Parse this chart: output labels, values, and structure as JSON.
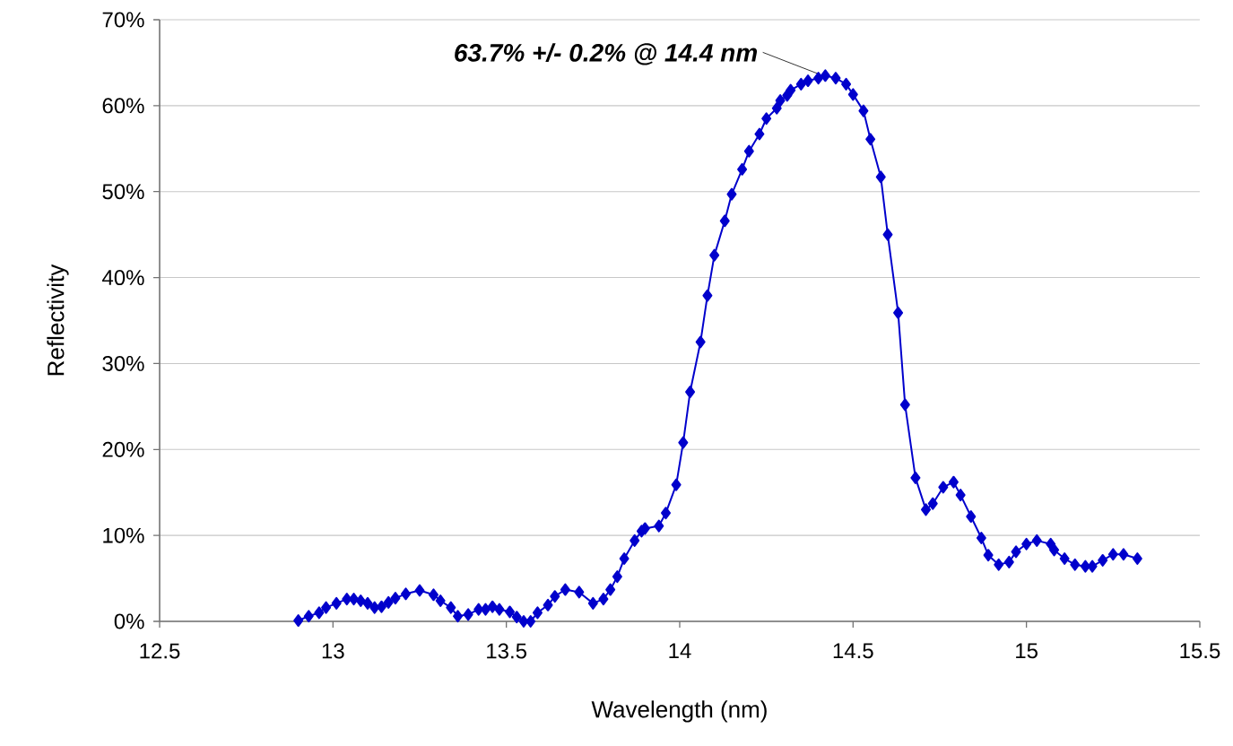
{
  "chart_data": {
    "type": "line",
    "xlabel": "Wavelength (nm)",
    "ylabel": "Reflectivity",
    "annotations": [
      {
        "text": "63.7% +/- 0.2% @ 14.4 nm",
        "x": 14.4,
        "y": 63.7
      }
    ],
    "xlim": [
      12.5,
      15.5
    ],
    "xticks": [
      12.5,
      13,
      13.5,
      14,
      14.5,
      15,
      15.5
    ],
    "ylim": [
      0,
      70
    ],
    "yticks": [
      {
        "value": 0,
        "label": "0%"
      },
      {
        "value": 10,
        "label": "10%"
      },
      {
        "value": 20,
        "label": "20%"
      },
      {
        "value": 30,
        "label": "30%"
      },
      {
        "value": 40,
        "label": "40%"
      },
      {
        "value": 50,
        "label": "50%"
      },
      {
        "value": 60,
        "label": "60%"
      },
      {
        "value": 70,
        "label": "70%"
      }
    ],
    "grid": "y",
    "marker": "diamond",
    "line_style": "solid",
    "series": [
      {
        "color": "#0000cc",
        "x": [
          12.9,
          12.93,
          12.96,
          12.98,
          13.01,
          13.04,
          13.06,
          13.08,
          13.1,
          13.12,
          13.14,
          13.16,
          13.18,
          13.21,
          13.25,
          13.29,
          13.31,
          13.34,
          13.36,
          13.39,
          13.42,
          13.44,
          13.46,
          13.48,
          13.51,
          13.53,
          13.55,
          13.57,
          13.59,
          13.62,
          13.64,
          13.67,
          13.71,
          13.75,
          13.78,
          13.8,
          13.82,
          13.84,
          13.87,
          13.89,
          13.9,
          13.94,
          13.96,
          13.99,
          14.01,
          14.03,
          14.06,
          14.08,
          14.1,
          14.13,
          14.15,
          14.18,
          14.2,
          14.23,
          14.25,
          14.28,
          14.29,
          14.31,
          14.32,
          14.35,
          14.37,
          14.4,
          14.42,
          14.45,
          14.48,
          14.5,
          14.53,
          14.55,
          14.58,
          14.6,
          14.63,
          14.65,
          14.68,
          14.71,
          14.73,
          14.76,
          14.79,
          14.81,
          14.84,
          14.87,
          14.89,
          14.92,
          14.95,
          14.97,
          15.0,
          15.03,
          15.07,
          15.08,
          15.11,
          15.14,
          15.17,
          15.19,
          15.22,
          15.25,
          15.28,
          15.32
        ],
        "values": [
          0.1,
          0.6,
          1.0,
          1.6,
          2.1,
          2.6,
          2.6,
          2.4,
          2.1,
          1.6,
          1.7,
          2.2,
          2.7,
          3.2,
          3.6,
          3.1,
          2.4,
          1.6,
          0.6,
          0.8,
          1.4,
          1.4,
          1.7,
          1.4,
          1.1,
          0.5,
          0.0,
          0.0,
          1.0,
          1.9,
          2.9,
          3.7,
          3.4,
          2.1,
          2.6,
          3.7,
          5.2,
          7.3,
          9.4,
          10.5,
          10.8,
          11.1,
          12.6,
          15.9,
          20.8,
          26.7,
          32.5,
          37.9,
          42.6,
          46.6,
          49.7,
          52.6,
          54.7,
          56.7,
          58.5,
          59.7,
          60.6,
          61.2,
          61.8,
          62.5,
          62.9,
          63.2,
          63.5,
          63.2,
          62.5,
          61.3,
          59.4,
          56.1,
          51.7,
          45.0,
          35.9,
          25.2,
          16.7,
          13.0,
          13.7,
          15.6,
          16.2,
          14.7,
          12.2,
          9.7,
          7.7,
          6.6,
          6.9,
          8.1,
          9.0,
          9.4,
          9.0,
          8.3,
          7.3,
          6.6,
          6.4,
          6.4,
          7.1,
          7.8,
          7.8,
          7.3
        ]
      }
    ]
  }
}
